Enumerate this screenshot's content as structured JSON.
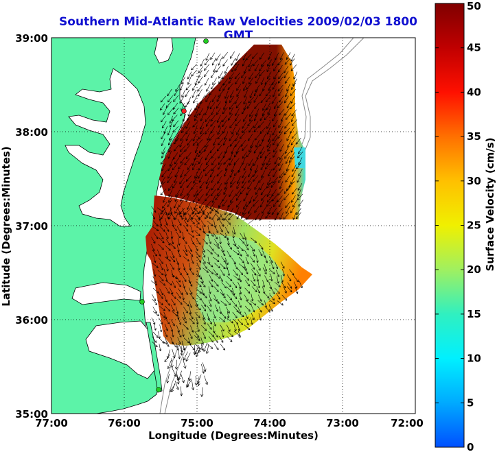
{
  "title": "Southern Mid-Atlantic Raw Velocities 2009/02/03 1800 GMT",
  "chart_data": {
    "type": "map",
    "xlabel": "Longitude (Degrees:Minutes)",
    "ylabel": "Latitude (Degrees:Minutes)",
    "x_ticks": [
      "77:00",
      "76:00",
      "75:00",
      "74:00",
      "73:00",
      "72:00"
    ],
    "y_ticks": [
      "39:00",
      "38:00",
      "37:00",
      "36:00",
      "35:00"
    ],
    "xlim": [
      -77,
      -72
    ],
    "ylim": [
      35,
      39
    ],
    "grid": true,
    "colorbar": {
      "label": "Surface Velocity (cm/s)",
      "range": [
        0,
        50
      ],
      "ticks": [
        "0",
        "5",
        "10",
        "15",
        "20",
        "25",
        "30",
        "35",
        "40",
        "45",
        "50"
      ]
    },
    "colors": {
      "land": "#5cf3a8",
      "water": "#ffffff",
      "title": "#1010d0",
      "station_marker": "#22cc22",
      "station_marker_red": "#ee2222"
    }
  }
}
